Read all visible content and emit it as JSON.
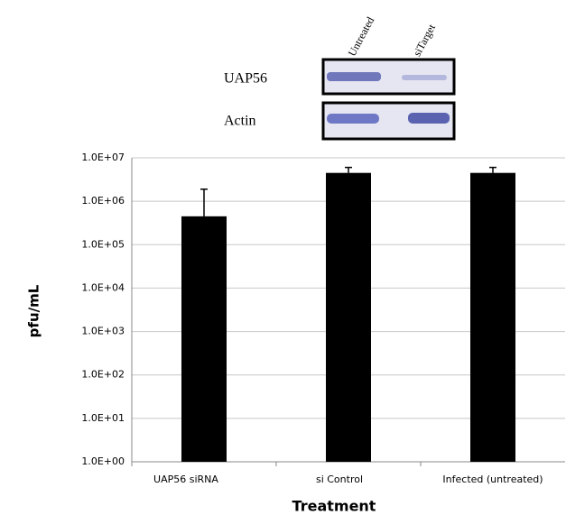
{
  "blot": {
    "lanes": [
      "Untreated",
      "siTarget"
    ],
    "rows": [
      "UAP56",
      "Actin"
    ]
  },
  "chart_data": {
    "type": "bar",
    "ylabel": "pfu/mL",
    "xlabel": "Treatment",
    "categories": [
      "UAP56 siRNA",
      "si Control",
      "Infected (untreated)"
    ],
    "values": [
      450000,
      4500000,
      4500000
    ],
    "errors": [
      1450000,
      1500000,
      1500000
    ],
    "color": "#000000",
    "ylim": [
      1,
      10000000
    ],
    "log_scale": true,
    "grid": true,
    "yticks": [
      {
        "value": 1,
        "label": "1.0E+00"
      },
      {
        "value": 10,
        "label": "1.0E+01"
      },
      {
        "value": 100,
        "label": "1.0E+02"
      },
      {
        "value": 1000,
        "label": "1.0E+03"
      },
      {
        "value": 10000,
        "label": "1.0E+04"
      },
      {
        "value": 100000,
        "label": "1.0E+05"
      },
      {
        "value": 1000000,
        "label": "1.0E+06"
      },
      {
        "value": 10000000,
        "label": "1.0E+07"
      }
    ]
  }
}
